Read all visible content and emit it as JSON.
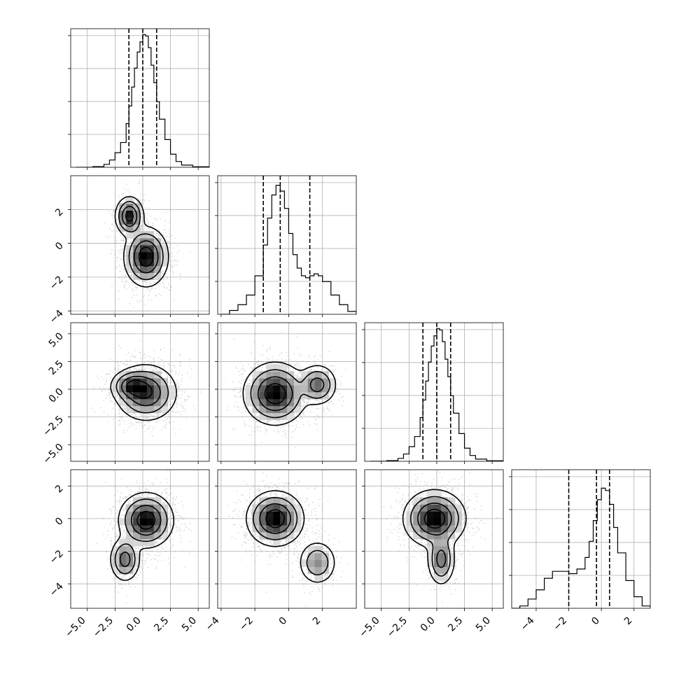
{
  "chart_data": {
    "type": "corner",
    "grid": true,
    "parameters": [
      {
        "range": [
          -6.5,
          6.0
        ],
        "ticks": [
          -5.0,
          -2.5,
          0.0,
          2.5,
          5.0
        ],
        "tick_labels": [
          "−5.0",
          "−2.5",
          "0.0",
          "2.5",
          "5.0"
        ],
        "hist_x": [
          -6.0,
          -4.5,
          -3.5,
          -3.0,
          -2.5,
          -2.0,
          -1.5,
          -1.25,
          -1.0,
          -0.75,
          -0.5,
          -0.25,
          0.0,
          0.25,
          0.5,
          0.75,
          1.0,
          1.25,
          1.5,
          2.0,
          2.5,
          3.0,
          3.5,
          4.5,
          6.0
        ],
        "hist_y": [
          0.0,
          0.005,
          0.02,
          0.05,
          0.1,
          0.17,
          0.3,
          0.42,
          0.55,
          0.68,
          0.79,
          0.86,
          0.91,
          0.9,
          0.82,
          0.7,
          0.58,
          0.45,
          0.33,
          0.19,
          0.09,
          0.04,
          0.015,
          0.004,
          0.0
        ],
        "hist_ylim": [
          0,
          0.95
        ],
        "quantiles": [
          -1.25,
          0.0,
          1.25
        ]
      },
      {
        "range": [
          -4.2,
          4.0
        ],
        "ticks": [
          -4,
          -2,
          0,
          2
        ],
        "tick_labels": [
          "−4",
          "−2",
          "0",
          "2"
        ],
        "hist_x": [
          -4.0,
          -3.5,
          -3.0,
          -2.5,
          -2.0,
          -1.5,
          -1.25,
          -1.0,
          -0.75,
          -0.5,
          -0.25,
          0.0,
          0.25,
          0.5,
          0.75,
          1.0,
          1.25,
          1.5,
          1.75,
          2.0,
          2.5,
          3.0,
          3.5,
          4.0
        ],
        "hist_y": [
          0.0,
          0.02,
          0.05,
          0.1,
          0.2,
          0.36,
          0.5,
          0.62,
          0.67,
          0.64,
          0.55,
          0.42,
          0.31,
          0.24,
          0.2,
          0.19,
          0.2,
          0.21,
          0.2,
          0.17,
          0.1,
          0.05,
          0.015,
          0.0
        ],
        "hist_ylim": [
          0,
          0.72
        ],
        "quantiles": [
          -1.5,
          -0.5,
          1.25
        ]
      },
      {
        "range": [
          -6.5,
          6.0
        ],
        "ticks": [
          -5.0,
          -2.5,
          0.0,
          2.5,
          5.0
        ],
        "tick_labels": [
          "−5.0",
          "−2.5",
          "0.0",
          "2.5",
          "5.0"
        ],
        "hist_x": [
          -6.0,
          -4.5,
          -3.5,
          -3.0,
          -2.5,
          -2.0,
          -1.5,
          -1.25,
          -1.0,
          -0.75,
          -0.5,
          -0.25,
          0.0,
          0.25,
          0.5,
          0.75,
          1.0,
          1.25,
          1.5,
          2.0,
          2.5,
          3.0,
          3.5,
          4.5,
          6.0
        ],
        "hist_y": [
          0.0,
          0.005,
          0.02,
          0.05,
          0.1,
          0.17,
          0.3,
          0.42,
          0.55,
          0.68,
          0.79,
          0.86,
          0.91,
          0.9,
          0.82,
          0.7,
          0.58,
          0.45,
          0.33,
          0.19,
          0.09,
          0.04,
          0.015,
          0.004,
          0.0
        ],
        "hist_ylim": [
          0,
          0.95
        ],
        "quantiles": [
          -1.25,
          0.0,
          1.25
        ]
      },
      {
        "range": [
          -5.5,
          3.0
        ],
        "ticks": [
          -4,
          -2,
          0,
          2
        ],
        "tick_labels": [
          "−4",
          "−2",
          "0",
          "2"
        ],
        "hist_x": [
          -5.5,
          -5.0,
          -4.5,
          -4.0,
          -3.5,
          -3.0,
          -2.5,
          -2.0,
          -1.5,
          -1.0,
          -0.75,
          -0.5,
          -0.25,
          0.0,
          0.25,
          0.5,
          0.75,
          1.0,
          1.5,
          2.0,
          2.5,
          3.0
        ],
        "hist_y": [
          0.0,
          0.01,
          0.04,
          0.08,
          0.13,
          0.16,
          0.16,
          0.15,
          0.17,
          0.22,
          0.29,
          0.38,
          0.47,
          0.52,
          0.51,
          0.45,
          0.35,
          0.24,
          0.12,
          0.05,
          0.01,
          0.0
        ],
        "hist_ylim": [
          0,
          0.6
        ],
        "quantiles": [
          -2.0,
          -0.3,
          0.5
        ]
      }
    ],
    "pairs": [
      {
        "row": 1,
        "col": 0,
        "x_sigma": 1.3,
        "y_sigma": 1.3,
        "modes": [
          {
            "x": 0.3,
            "y": -0.8,
            "w": 0.72,
            "sx": 0.85,
            "sy": 0.75
          },
          {
            "x": -1.2,
            "y": 1.6,
            "w": 0.28,
            "sx": 0.55,
            "sy": 0.5
          }
        ]
      },
      {
        "row": 2,
        "col": 0,
        "x_sigma": 1.3,
        "y_sigma": 1.3,
        "modes": [
          {
            "x": 0.3,
            "y": -0.3,
            "w": 0.78,
            "sx": 1.2,
            "sy": 1.1
          },
          {
            "x": -1.0,
            "y": 0.3,
            "w": 0.22,
            "sx": 0.8,
            "sy": 0.6
          }
        ]
      },
      {
        "row": 2,
        "col": 1,
        "x_sigma": 1.3,
        "y_sigma": 1.3,
        "modes": [
          {
            "x": -0.8,
            "y": -0.4,
            "w": 0.8,
            "sx": 0.8,
            "sy": 1.2
          },
          {
            "x": 1.7,
            "y": 0.4,
            "w": 0.2,
            "sx": 0.5,
            "sy": 0.8
          }
        ]
      },
      {
        "row": 3,
        "col": 0,
        "x_sigma": 1.3,
        "y_sigma": 1.3,
        "modes": [
          {
            "x": 0.3,
            "y": -0.1,
            "w": 0.78,
            "sx": 1.05,
            "sy": 0.72
          },
          {
            "x": -1.6,
            "y": -2.5,
            "w": 0.22,
            "sx": 0.6,
            "sy": 0.6
          }
        ]
      },
      {
        "row": 3,
        "col": 1,
        "x_sigma": 1.3,
        "y_sigma": 1.3,
        "modes": [
          {
            "x": -0.8,
            "y": 0.0,
            "w": 0.8,
            "sx": 0.72,
            "sy": 0.72
          },
          {
            "x": 1.7,
            "y": -2.7,
            "w": 0.2,
            "sx": 0.5,
            "sy": 0.6
          }
        ]
      },
      {
        "row": 3,
        "col": 2,
        "x_sigma": 1.3,
        "y_sigma": 1.3,
        "modes": [
          {
            "x": -0.2,
            "y": 0.0,
            "w": 0.8,
            "sx": 1.2,
            "sy": 0.75
          },
          {
            "x": 0.4,
            "y": -2.5,
            "w": 0.2,
            "sx": 0.55,
            "sy": 0.7
          }
        ]
      }
    ]
  }
}
